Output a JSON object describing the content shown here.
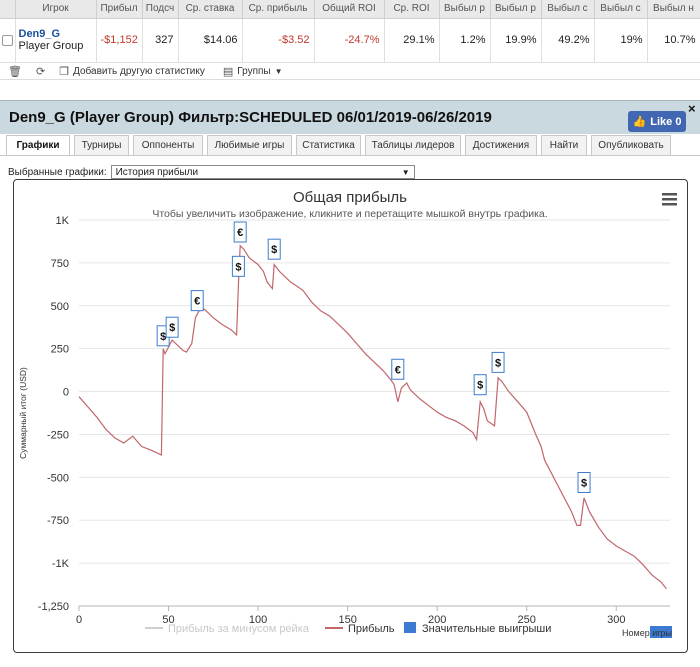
{
  "stats_table": {
    "headers": [
      "",
      "Игрок",
      "Прибыль",
      "Подсчёт",
      "Ср. ставка",
      "Ср. прибыль",
      "Общий ROI",
      "Ср. ROI",
      "Выбыл р",
      "Выбыл р",
      "Выбыл с",
      "Выбыл с",
      "Выбыл н"
    ],
    "headers_visible": [
      "",
      "Игрок",
      "Прибыл",
      "Подсч",
      "Ср. ставка",
      "Ср. прибыль",
      "Общий ROI",
      "Ср. ROI",
      "Выбыл р",
      "Выбыл р",
      "Выбыл с",
      "Выбыл с",
      "Выбыл н"
    ],
    "row": {
      "player_name": "Den9_G",
      "player_group": "Player Group",
      "profit": "-$1,152",
      "count": "327",
      "avg_stake": "$14.06",
      "avg_profit": "-$3.52",
      "total_roi": "-24.7%",
      "avg_roi": "29.1%",
      "c1": "1.2%",
      "c2": "19.9%",
      "c3": "49.2%",
      "c4": "19%",
      "c5": "10.7%"
    }
  },
  "toolbar": {
    "add_stat_label": "Добавить другую статистику",
    "groups_label": "Группы"
  },
  "panel": {
    "title": "Den9_G (Player Group) Фильтр:SCHEDULED 06/01/2019-06/26/2019",
    "like_label": "Like 0",
    "close_label": "×"
  },
  "tabs": [
    "Графики",
    "Турниры",
    "Оппоненты",
    "Любимые игры",
    "Статистика",
    "Таблицы лидеров",
    "Достижения",
    "Найти",
    "Опубликовать"
  ],
  "chart_selector": {
    "label": "Выбранные графики:",
    "value": "История прибыли"
  },
  "chart_data": {
    "type": "line",
    "title": "Общая прибыль",
    "subtitle": "Чтобы увеличить изображение, кликните и перетащите мышкой внутрь графика.",
    "ylabel": "Суммарный итог (USD)",
    "xlabel": "Номер игры",
    "xlim": [
      0,
      330
    ],
    "ylim": [
      -1250,
      1000
    ],
    "x_ticks": [
      "0",
      "50",
      "100",
      "150",
      "200",
      "250",
      "300"
    ],
    "y_ticks": [
      "1K",
      "750",
      "500",
      "250",
      "0",
      "-250",
      "-500",
      "-750",
      "-1K",
      "-1,250"
    ],
    "legend": [
      "Прибыль за минусом рейка",
      "Прибыль",
      "Значительные выигрыши"
    ],
    "series": [
      {
        "name": "Прибыль",
        "points": [
          [
            0,
            -30
          ],
          [
            5,
            -90
          ],
          [
            10,
            -150
          ],
          [
            15,
            -220
          ],
          [
            20,
            -270
          ],
          [
            25,
            -300
          ],
          [
            30,
            -260
          ],
          [
            35,
            -320
          ],
          [
            40,
            -340
          ],
          [
            45,
            -365
          ],
          [
            46,
            -370
          ],
          [
            47,
            250
          ],
          [
            48,
            220
          ],
          [
            50,
            260
          ],
          [
            52,
            300
          ],
          [
            55,
            270
          ],
          [
            58,
            240
          ],
          [
            60,
            230
          ],
          [
            63,
            280
          ],
          [
            65,
            430
          ],
          [
            67,
            470
          ],
          [
            70,
            480
          ],
          [
            75,
            430
          ],
          [
            80,
            390
          ],
          [
            85,
            360
          ],
          [
            88,
            330
          ],
          [
            89,
            620
          ],
          [
            90,
            850
          ],
          [
            92,
            830
          ],
          [
            95,
            780
          ],
          [
            100,
            740
          ],
          [
            103,
            700
          ],
          [
            105,
            640
          ],
          [
            108,
            600
          ],
          [
            109,
            740
          ],
          [
            112,
            700
          ],
          [
            118,
            640
          ],
          [
            125,
            590
          ],
          [
            130,
            520
          ],
          [
            135,
            470
          ],
          [
            140,
            440
          ],
          [
            145,
            390
          ],
          [
            150,
            340
          ],
          [
            155,
            280
          ],
          [
            160,
            220
          ],
          [
            165,
            170
          ],
          [
            170,
            120
          ],
          [
            174,
            70
          ],
          [
            176,
            40
          ],
          [
            178,
            -60
          ],
          [
            180,
            20
          ],
          [
            183,
            50
          ],
          [
            185,
            10
          ],
          [
            190,
            -40
          ],
          [
            195,
            -80
          ],
          [
            200,
            -120
          ],
          [
            205,
            -150
          ],
          [
            210,
            -170
          ],
          [
            215,
            -200
          ],
          [
            220,
            -240
          ],
          [
            222,
            -280
          ],
          [
            224,
            -60
          ],
          [
            226,
            -100
          ],
          [
            228,
            -170
          ],
          [
            232,
            -200
          ],
          [
            234,
            80
          ],
          [
            236,
            60
          ],
          [
            240,
            0
          ],
          [
            245,
            -60
          ],
          [
            250,
            -120
          ],
          [
            255,
            -250
          ],
          [
            258,
            -320
          ],
          [
            260,
            -400
          ],
          [
            265,
            -500
          ],
          [
            270,
            -600
          ],
          [
            275,
            -700
          ],
          [
            278,
            -780
          ],
          [
            280,
            -780
          ],
          [
            282,
            -620
          ],
          [
            285,
            -700
          ],
          [
            290,
            -790
          ],
          [
            295,
            -860
          ],
          [
            300,
            -900
          ],
          [
            305,
            -930
          ],
          [
            310,
            -960
          ],
          [
            315,
            -1010
          ],
          [
            320,
            -1070
          ],
          [
            325,
            -1110
          ],
          [
            328,
            -1150
          ]
        ]
      }
    ],
    "markers": [
      {
        "x": 47,
        "y": 255,
        "symbol": "$"
      },
      {
        "x": 52,
        "y": 305,
        "symbol": "$"
      },
      {
        "x": 66,
        "y": 460,
        "symbol": "€"
      },
      {
        "x": 89,
        "y": 660,
        "symbol": "$"
      },
      {
        "x": 90,
        "y": 860,
        "symbol": "€"
      },
      {
        "x": 109,
        "y": 760,
        "symbol": "$"
      },
      {
        "x": 178,
        "y": 60,
        "symbol": "€"
      },
      {
        "x": 224,
        "y": -30,
        "symbol": "$"
      },
      {
        "x": 234,
        "y": 100,
        "symbol": "$"
      },
      {
        "x": 282,
        "y": -600,
        "symbol": "$"
      }
    ],
    "colors": {
      "line": "#c1666b",
      "rake_line": "#cfcfcf",
      "marker": "#3c7bd1",
      "grid": "#e6e6e6"
    }
  }
}
